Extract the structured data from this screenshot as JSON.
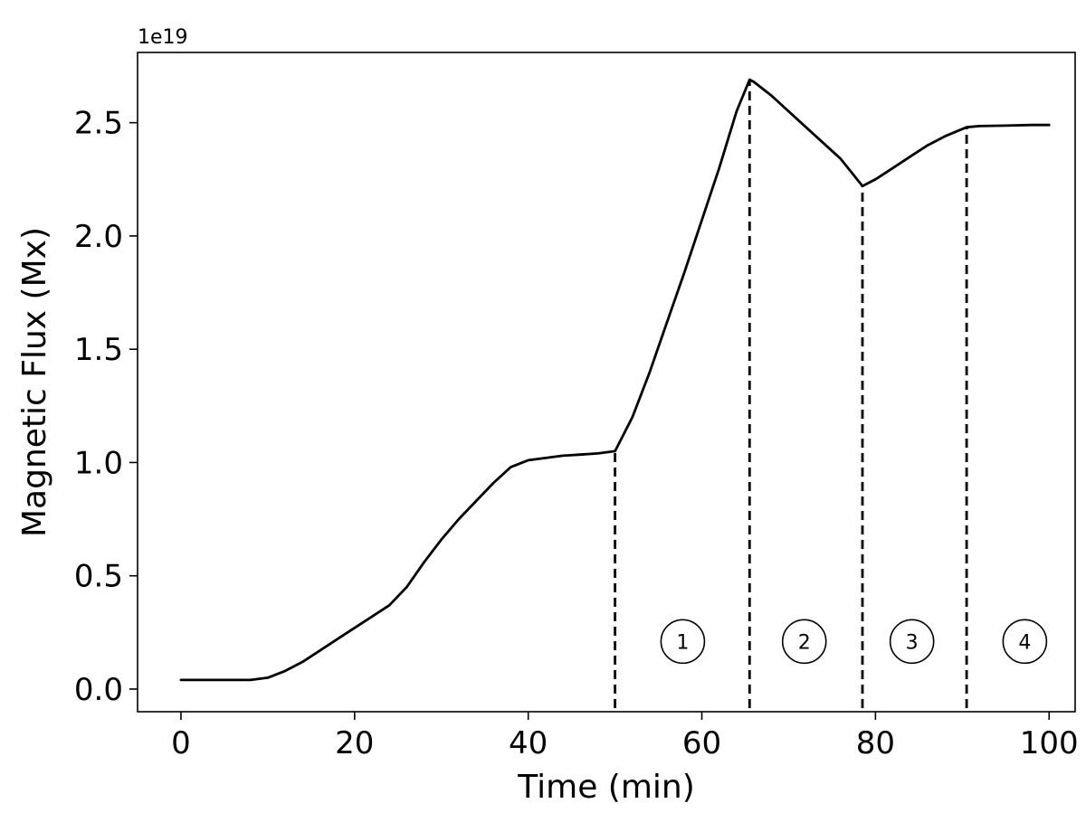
{
  "chart_data": {
    "type": "line",
    "xlabel": "Time (min)",
    "ylabel": "Magnetic Flux (Mx)",
    "y_offset_label": "1e19",
    "xlim": [
      -5,
      103
    ],
    "ylim": [
      -0.1,
      2.81
    ],
    "x_ticks": [
      0,
      20,
      40,
      60,
      80,
      100
    ],
    "y_ticks": [
      0.0,
      0.5,
      1.0,
      1.5,
      2.0,
      2.5
    ],
    "x_tick_labels": [
      "0",
      "20",
      "40",
      "60",
      "80",
      "100"
    ],
    "y_tick_labels": [
      "0.0",
      "0.5",
      "1.0",
      "1.5",
      "2.0",
      "2.5"
    ],
    "grid": false,
    "series": [
      {
        "color": "#000000",
        "x": [
          0,
          4,
          8,
          10,
          12,
          14,
          16,
          18,
          20,
          22,
          24,
          26,
          28,
          30,
          32,
          34,
          36,
          38,
          40,
          42,
          44,
          46,
          48,
          50,
          52,
          54,
          56,
          58,
          60,
          62,
          64,
          65.5,
          66,
          68,
          70,
          72,
          74,
          76,
          78.5,
          80,
          82,
          84,
          86,
          88,
          90.5,
          92,
          95,
          98,
          100
        ],
        "y": [
          0.04,
          0.04,
          0.04,
          0.05,
          0.08,
          0.12,
          0.17,
          0.22,
          0.27,
          0.32,
          0.37,
          0.45,
          0.56,
          0.66,
          0.75,
          0.83,
          0.91,
          0.98,
          1.01,
          1.02,
          1.03,
          1.035,
          1.04,
          1.05,
          1.2,
          1.4,
          1.62,
          1.84,
          2.07,
          2.3,
          2.55,
          2.69,
          2.68,
          2.62,
          2.55,
          2.48,
          2.41,
          2.34,
          2.22,
          2.25,
          2.3,
          2.35,
          2.4,
          2.44,
          2.48,
          2.485,
          2.487,
          2.49,
          2.49
        ]
      }
    ],
    "markers": [
      {
        "type": "vline",
        "x": 50,
        "y_end": 1.05
      },
      {
        "type": "vline",
        "x": 65.5,
        "y_end": 2.69
      },
      {
        "type": "vline",
        "x": 78.5,
        "y_end": 2.22
      },
      {
        "type": "vline",
        "x": 90.5,
        "y_end": 2.48
      }
    ],
    "phase_labels": [
      {
        "label": "1",
        "x": 57.8,
        "y": 0.21
      },
      {
        "label": "2",
        "x": 71.8,
        "y": 0.21
      },
      {
        "label": "3",
        "x": 84.2,
        "y": 0.21
      },
      {
        "label": "4",
        "x": 97.2,
        "y": 0.21
      }
    ]
  }
}
